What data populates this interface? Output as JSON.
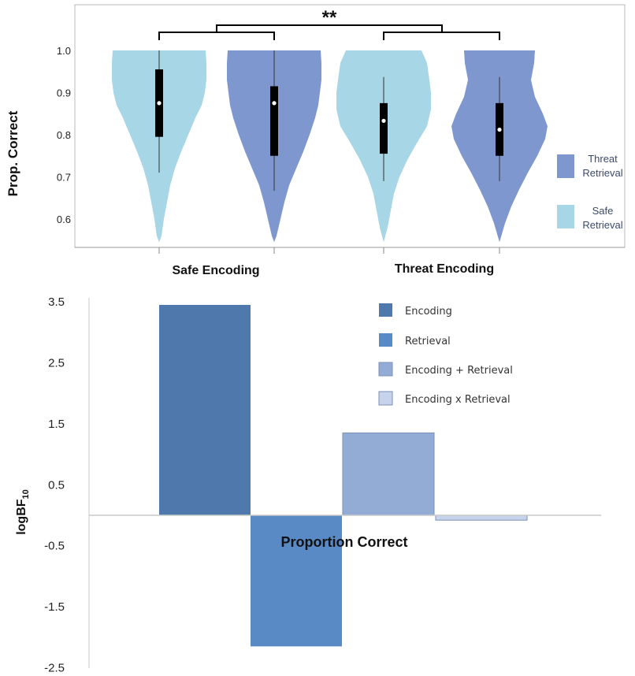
{
  "chart_data": [
    {
      "type": "violin",
      "ylabel": "Prop. Correct",
      "ylim": [
        0.54,
        1.0
      ],
      "yticks": [
        "0.6",
        "0.7",
        "0.8",
        "0.9",
        "1.0"
      ],
      "categories": [
        "Safe Encoding",
        "Threat Encoding"
      ],
      "significance": "**",
      "legend": [
        {
          "label_line1": "Threat",
          "label_line2": "Retrieval",
          "color": "#7f97cf"
        },
        {
          "label_line1": "Safe",
          "label_line2": "Retrieval",
          "color": "#a7d6e6"
        }
      ],
      "series": [
        {
          "name": "Safe Retrieval",
          "color": "#a7d6e6",
          "values": [
            {
              "category": "Safe Encoding",
              "min": 0.71,
              "q1": 0.795,
              "median": 0.875,
              "q3": 0.955,
              "max": 1.0
            },
            {
              "category": "Threat Encoding",
              "min": 0.69,
              "q1": 0.755,
              "median": 0.833,
              "q3": 0.875,
              "max": 0.937
            }
          ]
        },
        {
          "name": "Threat Retrieval",
          "color": "#7f97cf",
          "values": [
            {
              "category": "Safe Encoding",
              "min": 0.667,
              "q1": 0.75,
              "median": 0.875,
              "q3": 0.915,
              "max": 1.0
            },
            {
              "category": "Threat Encoding",
              "min": 0.69,
              "q1": 0.75,
              "median": 0.812,
              "q3": 0.875,
              "max": 0.937
            }
          ]
        }
      ]
    },
    {
      "type": "bar",
      "ylabel": "logBF",
      "ylabel_sub": "10",
      "xlabel": "Proportion Correct",
      "ylim": [
        -2.5,
        3.5
      ],
      "yticks": [
        "3.5",
        "2.5",
        "1.5",
        "0.5",
        "-0.5",
        "-1.5",
        "-2.5"
      ],
      "categories": [
        "Encoding",
        "Retrieval",
        "Encoding + Retrieval",
        "Encoding x Retrieval"
      ],
      "values": [
        3.45,
        -2.15,
        1.35,
        -0.08
      ],
      "colors": [
        "#4f78ac",
        "#5a8ac6",
        "#92acd6",
        "#c6d3ea"
      ]
    }
  ]
}
